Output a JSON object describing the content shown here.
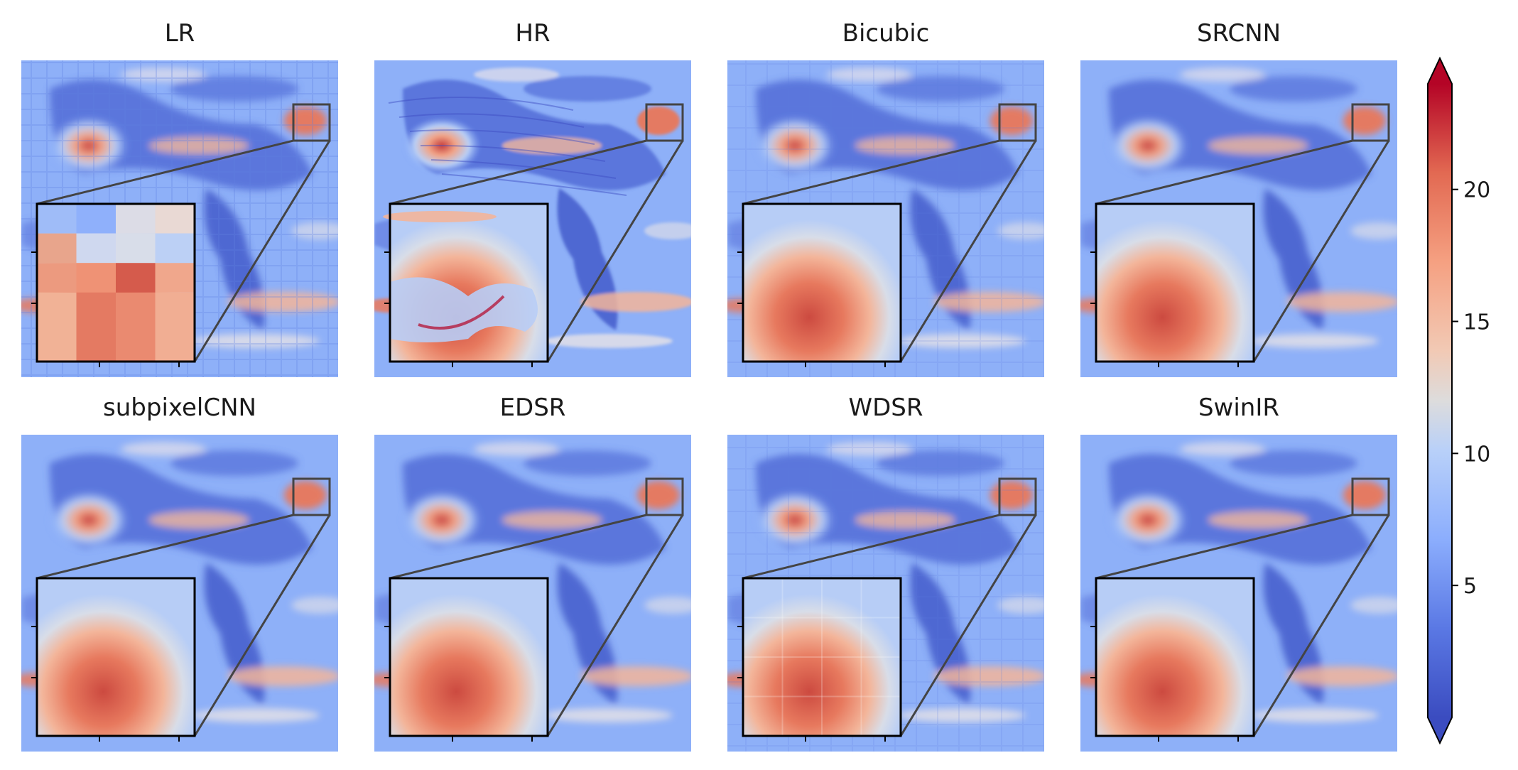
{
  "panels": [
    {
      "title": "LR",
      "style": "blocky"
    },
    {
      "title": "HR",
      "style": "sharp"
    },
    {
      "title": "Bicubic",
      "style": "smooth-blocky"
    },
    {
      "title": "SRCNN",
      "style": "smooth"
    },
    {
      "title": "subpixelCNN",
      "style": "smooth"
    },
    {
      "title": "EDSR",
      "style": "smooth"
    },
    {
      "title": "WDSR",
      "style": "blocky-smooth"
    },
    {
      "title": "SwinIR",
      "style": "smooth"
    }
  ],
  "colorbar": {
    "colormap": "coolwarm",
    "range": [
      0,
      24
    ],
    "ticks": [
      "5",
      "10",
      "15",
      "20"
    ],
    "extend": "both",
    "colors": [
      "#3b4cc0",
      "#6788ee",
      "#9abbff",
      "#c9d7f0",
      "#edd1c2",
      "#f7a889",
      "#e26952",
      "#b40426"
    ]
  },
  "inset": {
    "frame_color": "#000000",
    "connector_color": "#444444"
  }
}
